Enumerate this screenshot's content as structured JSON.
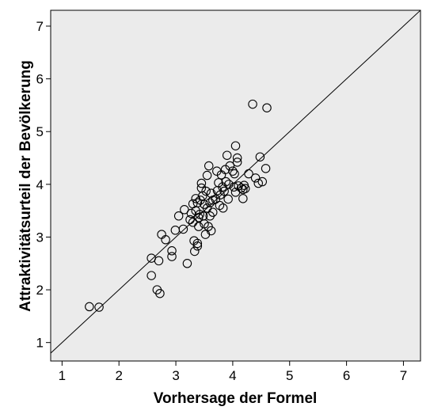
{
  "chart_data": {
    "type": "scatter",
    "title": "",
    "xlabel": "Vorhersage der Formel",
    "ylabel": "Attraktivitätsurteil der Bevölkerung",
    "xlim": [
      0.8,
      7.3
    ],
    "ylim": [
      0.65,
      7.3
    ],
    "xticks": [
      1,
      2,
      3,
      4,
      5,
      6,
      7
    ],
    "yticks": [
      1,
      2,
      3,
      4,
      5,
      6,
      7
    ],
    "grid": false,
    "legend": "none",
    "reference_line": {
      "type": "identity",
      "label": "y = x"
    },
    "colors": {
      "plot_bg": "#ebebeb",
      "marker_stroke": "#000000",
      "line": "#000000"
    },
    "series": [
      {
        "points": [
          [
            1.48,
            1.68
          ],
          [
            1.65,
            1.67
          ],
          [
            2.57,
            2.6
          ],
          [
            2.57,
            2.27
          ],
          [
            2.67,
            2.0
          ],
          [
            2.72,
            1.93
          ],
          [
            2.7,
            2.55
          ],
          [
            2.75,
            3.05
          ],
          [
            2.82,
            2.95
          ],
          [
            2.93,
            2.74
          ],
          [
            2.93,
            2.63
          ],
          [
            2.99,
            3.13
          ],
          [
            3.05,
            3.4
          ],
          [
            3.13,
            3.15
          ],
          [
            3.15,
            3.52
          ],
          [
            3.2,
            2.5
          ],
          [
            3.25,
            3.33
          ],
          [
            3.27,
            3.45
          ],
          [
            3.3,
            3.63
          ],
          [
            3.3,
            3.28
          ],
          [
            3.32,
            2.93
          ],
          [
            3.33,
            2.73
          ],
          [
            3.35,
            3.5
          ],
          [
            3.35,
            3.73
          ],
          [
            3.38,
            3.65
          ],
          [
            3.38,
            2.88
          ],
          [
            3.38,
            2.83
          ],
          [
            3.4,
            3.37
          ],
          [
            3.4,
            3.2
          ],
          [
            3.42,
            3.43
          ],
          [
            3.43,
            3.7
          ],
          [
            3.45,
            3.93
          ],
          [
            3.45,
            4.02
          ],
          [
            3.47,
            3.78
          ],
          [
            3.48,
            3.4
          ],
          [
            3.5,
            3.62
          ],
          [
            3.5,
            3.25
          ],
          [
            3.52,
            3.05
          ],
          [
            3.53,
            3.87
          ],
          [
            3.55,
            3.55
          ],
          [
            3.55,
            4.17
          ],
          [
            3.57,
            3.2
          ],
          [
            3.58,
            4.35
          ],
          [
            3.6,
            3.65
          ],
          [
            3.6,
            3.4
          ],
          [
            3.62,
            3.12
          ],
          [
            3.62,
            3.83
          ],
          [
            3.65,
            3.7
          ],
          [
            3.65,
            3.47
          ],
          [
            3.7,
            3.72
          ],
          [
            3.72,
            4.25
          ],
          [
            3.73,
            3.88
          ],
          [
            3.75,
            4.03
          ],
          [
            3.77,
            3.6
          ],
          [
            3.78,
            3.8
          ],
          [
            3.8,
            4.18
          ],
          [
            3.82,
            3.95
          ],
          [
            3.83,
            3.55
          ],
          [
            3.85,
            3.87
          ],
          [
            3.87,
            4.28
          ],
          [
            3.88,
            4.05
          ],
          [
            3.9,
            4.55
          ],
          [
            3.92,
            3.72
          ],
          [
            3.93,
            4.0
          ],
          [
            3.95,
            4.35
          ],
          [
            4.0,
            4.25
          ],
          [
            4.02,
            3.95
          ],
          [
            4.03,
            4.2
          ],
          [
            4.05,
            4.73
          ],
          [
            4.05,
            3.85
          ],
          [
            4.08,
            4.5
          ],
          [
            4.08,
            4.42
          ],
          [
            4.1,
            3.97
          ],
          [
            4.15,
            3.93
          ],
          [
            4.18,
            3.73
          ],
          [
            4.18,
            3.9
          ],
          [
            4.2,
            3.98
          ],
          [
            4.22,
            3.92
          ],
          [
            4.28,
            4.2
          ],
          [
            4.35,
            5.52
          ],
          [
            4.4,
            4.12
          ],
          [
            4.45,
            4.02
          ],
          [
            4.48,
            4.52
          ],
          [
            4.52,
            4.05
          ],
          [
            4.58,
            4.3
          ],
          [
            4.6,
            5.45
          ]
        ]
      }
    ]
  }
}
